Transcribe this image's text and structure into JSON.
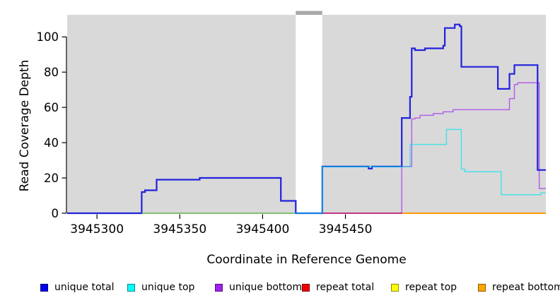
{
  "chart_data": {
    "type": "line",
    "title": "",
    "xlabel": "Coordinate in Reference Genome",
    "ylabel": "Read Coverage Depth",
    "xlim": [
      3945282,
      3945571
    ],
    "ylim": [
      0,
      112.5
    ],
    "x_ticks": [
      3945300,
      3945350,
      3945400,
      3945450
    ],
    "y_ticks": [
      0,
      20,
      40,
      60,
      80,
      100
    ],
    "grid": false,
    "panel_bg": "#d9d9d9",
    "axis_color": "#000000",
    "legend_position": "bottom",
    "gap_region": {
      "x_start": 3945420,
      "x_end": 3945436,
      "fill": "#ffffff",
      "cap_color": "#a8a8a8",
      "note": "white no-data gap with gray cap bar above panel top"
    },
    "series": [
      {
        "name": "repeat top",
        "color": "#f0f000",
        "width": 1.5,
        "opacity": 1,
        "points": [
          [
            3945327,
            0
          ],
          [
            3945420,
            0
          ]
        ]
      },
      {
        "name": "repeat bottom",
        "color": "#ff9d00",
        "width": 2,
        "opacity": 1,
        "points": [
          [
            3945282,
            0
          ],
          [
            3945571,
            0
          ]
        ]
      },
      {
        "name": "repeat total",
        "color": "#dd2233",
        "width": 1.5,
        "opacity": 1,
        "points": [
          [
            3945436,
            0
          ],
          [
            3945484,
            0
          ]
        ]
      },
      {
        "name": "unique bottom",
        "color": "#a020f0",
        "width": 1.5,
        "opacity": 0.65,
        "points": [
          [
            3945436,
            0
          ],
          [
            3945484,
            0
          ],
          [
            3945484,
            26.5
          ],
          [
            3945490,
            26.5
          ],
          [
            3945490,
            53.5
          ],
          [
            3945492,
            53.5
          ],
          [
            3945492,
            54
          ],
          [
            3945495,
            54
          ],
          [
            3945495,
            55.5
          ],
          [
            3945503,
            55.5
          ],
          [
            3945503,
            56.5
          ],
          [
            3945509,
            56.5
          ],
          [
            3945509,
            57.5
          ],
          [
            3945515,
            57.5
          ],
          [
            3945515,
            58.7
          ],
          [
            3945549,
            58.7
          ],
          [
            3945549,
            65
          ],
          [
            3945552,
            65
          ],
          [
            3945552,
            73
          ],
          [
            3945554,
            73
          ],
          [
            3945554,
            74
          ],
          [
            3945567,
            74
          ],
          [
            3945567,
            14
          ],
          [
            3945571,
            14
          ]
        ]
      },
      {
        "name": "unique total",
        "color": "#2222dd",
        "width": 2.2,
        "opacity": 1,
        "points": [
          [
            3945282,
            0
          ],
          [
            3945327,
            0
          ],
          [
            3945327,
            12
          ],
          [
            3945329,
            12
          ],
          [
            3945329,
            13
          ],
          [
            3945336,
            13
          ],
          [
            3945336,
            19
          ],
          [
            3945362,
            19
          ],
          [
            3945362,
            20
          ],
          [
            3945411,
            20
          ],
          [
            3945411,
            7
          ],
          [
            3945420,
            7
          ],
          [
            3945420,
            0
          ],
          [
            3945436,
            0
          ],
          [
            3945436,
            26.5
          ],
          [
            3945464,
            26.5
          ],
          [
            3945464,
            25.3
          ],
          [
            3945466,
            25.3
          ],
          [
            3945466,
            26.5
          ],
          [
            3945484,
            26.5
          ],
          [
            3945484,
            54
          ],
          [
            3945489,
            54
          ],
          [
            3945489,
            66
          ],
          [
            3945490,
            66
          ],
          [
            3945490,
            93.5
          ],
          [
            3945492,
            93.5
          ],
          [
            3945492,
            92.5
          ],
          [
            3945498,
            92.5
          ],
          [
            3945498,
            93.5
          ],
          [
            3945509,
            93.5
          ],
          [
            3945509,
            95
          ],
          [
            3945510,
            95
          ],
          [
            3945510,
            105
          ],
          [
            3945516,
            105
          ],
          [
            3945516,
            107
          ],
          [
            3945519,
            107
          ],
          [
            3945519,
            106
          ],
          [
            3945520,
            106
          ],
          [
            3945520,
            83
          ],
          [
            3945542,
            83
          ],
          [
            3945542,
            70.5
          ],
          [
            3945549,
            70.5
          ],
          [
            3945549,
            79
          ],
          [
            3945552,
            79
          ],
          [
            3945552,
            84
          ],
          [
            3945566,
            84
          ],
          [
            3945566,
            24.5
          ],
          [
            3945571,
            24.5
          ]
        ]
      },
      {
        "name": "unique top",
        "color": "#00e5ee",
        "width": 1.5,
        "opacity": 0.65,
        "points": [
          [
            3945327,
            0
          ],
          [
            3945436,
            0
          ],
          [
            3945436,
            26.3
          ],
          [
            3945489,
            26.3
          ],
          [
            3945489,
            39
          ],
          [
            3945511,
            39
          ],
          [
            3945511,
            47.5
          ],
          [
            3945520,
            47.5
          ],
          [
            3945520,
            25
          ],
          [
            3945522,
            25
          ],
          [
            3945522,
            23.5
          ],
          [
            3945544,
            23.5
          ],
          [
            3945544,
            10.5
          ],
          [
            3945568,
            10.5
          ],
          [
            3945568,
            11.5
          ],
          [
            3945571,
            11.5
          ]
        ]
      }
    ]
  },
  "legend": {
    "items": [
      {
        "label": "unique total",
        "swatch_color": "#0000ee"
      },
      {
        "label": "unique top",
        "swatch_color": "#00ffff"
      },
      {
        "label": "unique bottom",
        "swatch_color": "#a020f0"
      },
      {
        "label": "repeat total",
        "swatch_color": "#ee0000"
      },
      {
        "label": "repeat top",
        "swatch_color": "#ffff00"
      },
      {
        "label": "repeat bottom",
        "swatch_color": "#ffa500"
      }
    ]
  }
}
